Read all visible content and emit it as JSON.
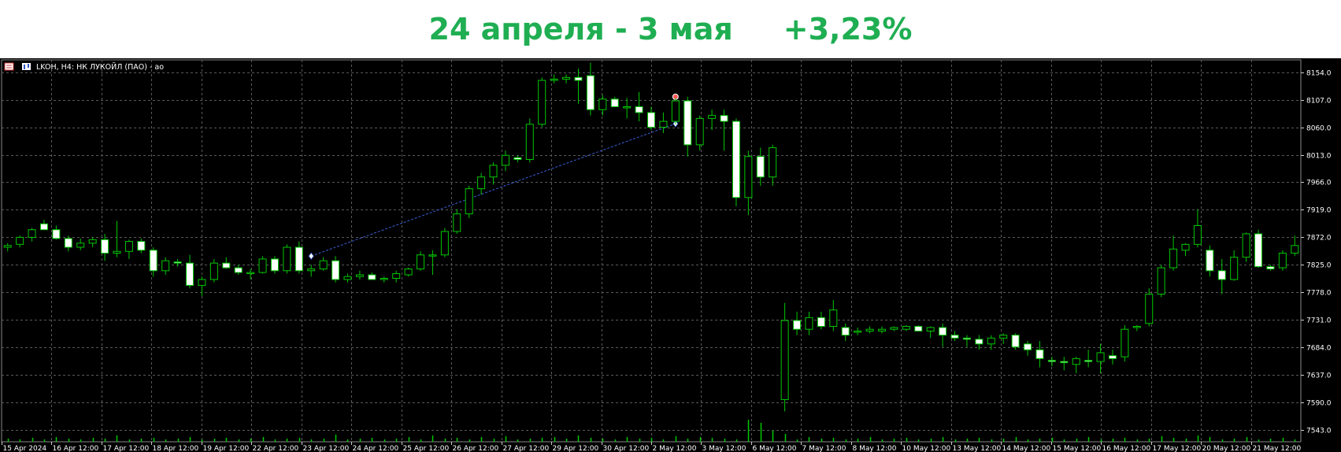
{
  "header": {
    "period": "24 апреля - 3 мая",
    "change": "+3,23%"
  },
  "window": {
    "title": "LKOH, H4:  НК ЛУКОЙЛ (ПАО) - ao"
  },
  "colors": {
    "accent": "#1fae52",
    "background": "#000000",
    "grid": "#5a5a5a",
    "bull_fill": "#000000",
    "bear_fill": "#ffffff",
    "wick": "#00c800",
    "trendline": "#3a5fd8",
    "volume": "#00c800"
  },
  "chart_data": {
    "type": "candlestick",
    "timeframe": "H4",
    "y_ticks": [
      8154.0,
      8107.0,
      8060.0,
      8013.0,
      7966.0,
      7919.0,
      7872.0,
      7825.0,
      7778.0,
      7731.0,
      7684.0,
      7637.0,
      7590.0,
      7543.0
    ],
    "y_tick_labels": [
      "8154.0",
      "8107.0",
      "8060.0",
      "8013.0",
      "7966.0",
      "7919.0",
      "7872.0",
      "7825.0",
      "7778.0",
      "7731.0",
      "7684.0",
      "7637.0",
      "7590.0",
      "7543.0"
    ],
    "x_tick_labels": [
      "15 Apr 2024",
      "16 Apr 12:00",
      "17 Apr 12:00",
      "18 Apr 12:00",
      "19 Apr 12:00",
      "22 Apr 12:00",
      "23 Apr 12:00",
      "24 Apr 12:00",
      "25 Apr 12:00",
      "26 Apr 12:00",
      "27 Apr 12:00",
      "29 Apr 12:00",
      "30 Apr 12:00",
      "2 May 12:00",
      "3 May 12:00",
      "6 May 12:00",
      "7 May 12:00",
      "8 May 12:00",
      "10 May 12:00",
      "13 May 12:00",
      "14 May 12:00",
      "15 May 12:00",
      "16 May 12:00",
      "17 May 12:00",
      "20 May 12:00",
      "21 May 12:00"
    ],
    "candles": [
      [
        7855,
        7862,
        7848,
        7858
      ],
      [
        7860,
        7875,
        7855,
        7872
      ],
      [
        7872,
        7888,
        7865,
        7885
      ],
      [
        7895,
        7902,
        7885,
        7885
      ],
      [
        7885,
        7892,
        7868,
        7870
      ],
      [
        7870,
        7875,
        7848,
        7855
      ],
      [
        7855,
        7870,
        7850,
        7862
      ],
      [
        7862,
        7872,
        7855,
        7868
      ],
      [
        7868,
        7878,
        7832,
        7845
      ],
      [
        7845,
        7900,
        7838,
        7848
      ],
      [
        7848,
        7868,
        7835,
        7865
      ],
      [
        7865,
        7870,
        7845,
        7850
      ],
      [
        7850,
        7855,
        7805,
        7815
      ],
      [
        7815,
        7838,
        7808,
        7832
      ],
      [
        7830,
        7835,
        7822,
        7828
      ],
      [
        7828,
        7842,
        7785,
        7790
      ],
      [
        7790,
        7805,
        7772,
        7800
      ],
      [
        7800,
        7835,
        7795,
        7828
      ],
      [
        7828,
        7838,
        7818,
        7820
      ],
      [
        7820,
        7825,
        7808,
        7812
      ],
      [
        7810,
        7818,
        7800,
        7812
      ],
      [
        7812,
        7840,
        7810,
        7835
      ],
      [
        7835,
        7840,
        7810,
        7815
      ],
      [
        7815,
        7860,
        7810,
        7855
      ],
      [
        7855,
        7865,
        7810,
        7815
      ],
      [
        7815,
        7825,
        7805,
        7818
      ],
      [
        7818,
        7838,
        7815,
        7832
      ],
      [
        7832,
        7840,
        7795,
        7800
      ],
      [
        7800,
        7810,
        7795,
        7805
      ],
      [
        7805,
        7815,
        7800,
        7808
      ],
      [
        7808,
        7812,
        7800,
        7800
      ],
      [
        7800,
        7805,
        7795,
        7802
      ],
      [
        7802,
        7815,
        7795,
        7810
      ],
      [
        7808,
        7820,
        7805,
        7818
      ],
      [
        7818,
        7848,
        7815,
        7842
      ],
      [
        7840,
        7850,
        7808,
        7842
      ],
      [
        7842,
        7888,
        7838,
        7882
      ],
      [
        7882,
        7920,
        7878,
        7912
      ],
      [
        7912,
        7960,
        7905,
        7955
      ],
      [
        7955,
        7982,
        7945,
        7975
      ],
      [
        7975,
        8000,
        7962,
        7995
      ],
      [
        7995,
        8020,
        7985,
        8012
      ],
      [
        8008,
        8012,
        8000,
        8005
      ],
      [
        8005,
        8075,
        8000,
        8065
      ],
      [
        8065,
        8145,
        8060,
        8140
      ],
      [
        8140,
        8150,
        8135,
        8142
      ],
      [
        8142,
        8150,
        8135,
        8145
      ],
      [
        8145,
        8160,
        8100,
        8140
      ],
      [
        8148,
        8170,
        8080,
        8090
      ],
      [
        8090,
        8115,
        8080,
        8108
      ],
      [
        8108,
        8112,
        8095,
        8095
      ],
      [
        8095,
        8110,
        8075,
        8095
      ],
      [
        8095,
        8120,
        8070,
        8085
      ],
      [
        8085,
        8095,
        8055,
        8060
      ],
      [
        8060,
        8085,
        8050,
        8070
      ],
      [
        8070,
        8110,
        8065,
        8105
      ],
      [
        8105,
        8112,
        8010,
        8030
      ],
      [
        8030,
        8080,
        8020,
        8075
      ],
      [
        8075,
        8090,
        8055,
        8080
      ],
      [
        8080,
        8090,
        8020,
        8070
      ],
      [
        8070,
        8075,
        7925,
        7940
      ],
      [
        7940,
        8020,
        7910,
        8010
      ],
      [
        8010,
        8025,
        7960,
        7975
      ],
      [
        7975,
        8030,
        7960,
        8025
      ],
      [
        7595,
        7760,
        7575,
        7730
      ],
      [
        7730,
        7745,
        7705,
        7715
      ],
      [
        7715,
        7745,
        7705,
        7735
      ],
      [
        7735,
        7745,
        7715,
        7720
      ],
      [
        7720,
        7765,
        7712,
        7748
      ],
      [
        7718,
        7725,
        7695,
        7705
      ],
      [
        7712,
        7718,
        7705,
        7712
      ],
      [
        7712,
        7720,
        7708,
        7715
      ],
      [
        7712,
        7720,
        7708,
        7715
      ],
      [
        7715,
        7720,
        7712,
        7718
      ],
      [
        7715,
        7722,
        7712,
        7720
      ],
      [
        7720,
        7722,
        7712,
        7712
      ],
      [
        7712,
        7720,
        7700,
        7718
      ],
      [
        7718,
        7725,
        7685,
        7705
      ],
      [
        7705,
        7712,
        7695,
        7700
      ],
      [
        7700,
        7705,
        7685,
        7698
      ],
      [
        7698,
        7705,
        7680,
        7690
      ],
      [
        7690,
        7705,
        7680,
        7700
      ],
      [
        7700,
        7708,
        7690,
        7705
      ],
      [
        7705,
        7708,
        7680,
        7685
      ],
      [
        7690,
        7695,
        7670,
        7680
      ],
      [
        7680,
        7695,
        7650,
        7665
      ],
      [
        7662,
        7668,
        7652,
        7660
      ],
      [
        7660,
        7668,
        7645,
        7658
      ],
      [
        7655,
        7668,
        7640,
        7665
      ],
      [
        7662,
        7680,
        7650,
        7660
      ],
      [
        7660,
        7690,
        7640,
        7675
      ],
      [
        7670,
        7680,
        7655,
        7665
      ],
      [
        7668,
        7722,
        7660,
        7715
      ],
      [
        7718,
        7722,
        7712,
        7720
      ],
      [
        7725,
        7785,
        7720,
        7775
      ],
      [
        7775,
        7825,
        7770,
        7820
      ],
      [
        7820,
        7875,
        7815,
        7852
      ],
      [
        7850,
        7862,
        7840,
        7860
      ],
      [
        7860,
        7920,
        7855,
        7892
      ],
      [
        7850,
        7858,
        7805,
        7815
      ],
      [
        7815,
        7835,
        7775,
        7800
      ],
      [
        7800,
        7850,
        7798,
        7838
      ],
      [
        7838,
        7880,
        7830,
        7878
      ],
      [
        7878,
        7885,
        7820,
        7822
      ],
      [
        7822,
        7825,
        7815,
        7818
      ],
      [
        7820,
        7850,
        7815,
        7845
      ],
      [
        7845,
        7875,
        7840,
        7858
      ]
    ],
    "volume_heights": [
      4,
      3,
      5,
      3,
      6,
      4,
      3,
      5,
      4,
      8,
      3,
      4,
      5,
      3,
      4,
      6,
      3,
      4,
      5,
      3,
      4,
      6,
      3,
      4,
      5,
      3,
      4,
      9,
      3,
      4,
      5,
      3,
      4,
      6,
      3,
      8,
      4,
      5,
      3,
      6,
      4,
      7,
      3,
      4,
      5,
      6,
      4,
      8,
      5,
      4,
      3,
      6,
      4,
      5,
      3,
      7,
      4,
      6,
      5,
      4,
      3,
      28,
      24,
      14,
      10,
      3,
      6,
      4,
      5,
      3,
      4,
      6,
      3,
      4,
      5,
      3,
      4,
      6,
      3,
      4,
      5,
      3,
      4,
      6,
      3,
      4,
      5,
      3,
      4,
      6,
      3,
      4,
      5,
      3,
      4,
      7,
      5,
      4,
      8,
      6,
      3,
      4,
      6,
      3,
      4,
      5,
      3
    ],
    "trendline": {
      "from": {
        "candle_index": 25,
        "price": 7840
      },
      "to": {
        "candle_index": 55,
        "price": 8066
      }
    },
    "ylim": [
      7523,
      8175
    ],
    "grid": true
  }
}
